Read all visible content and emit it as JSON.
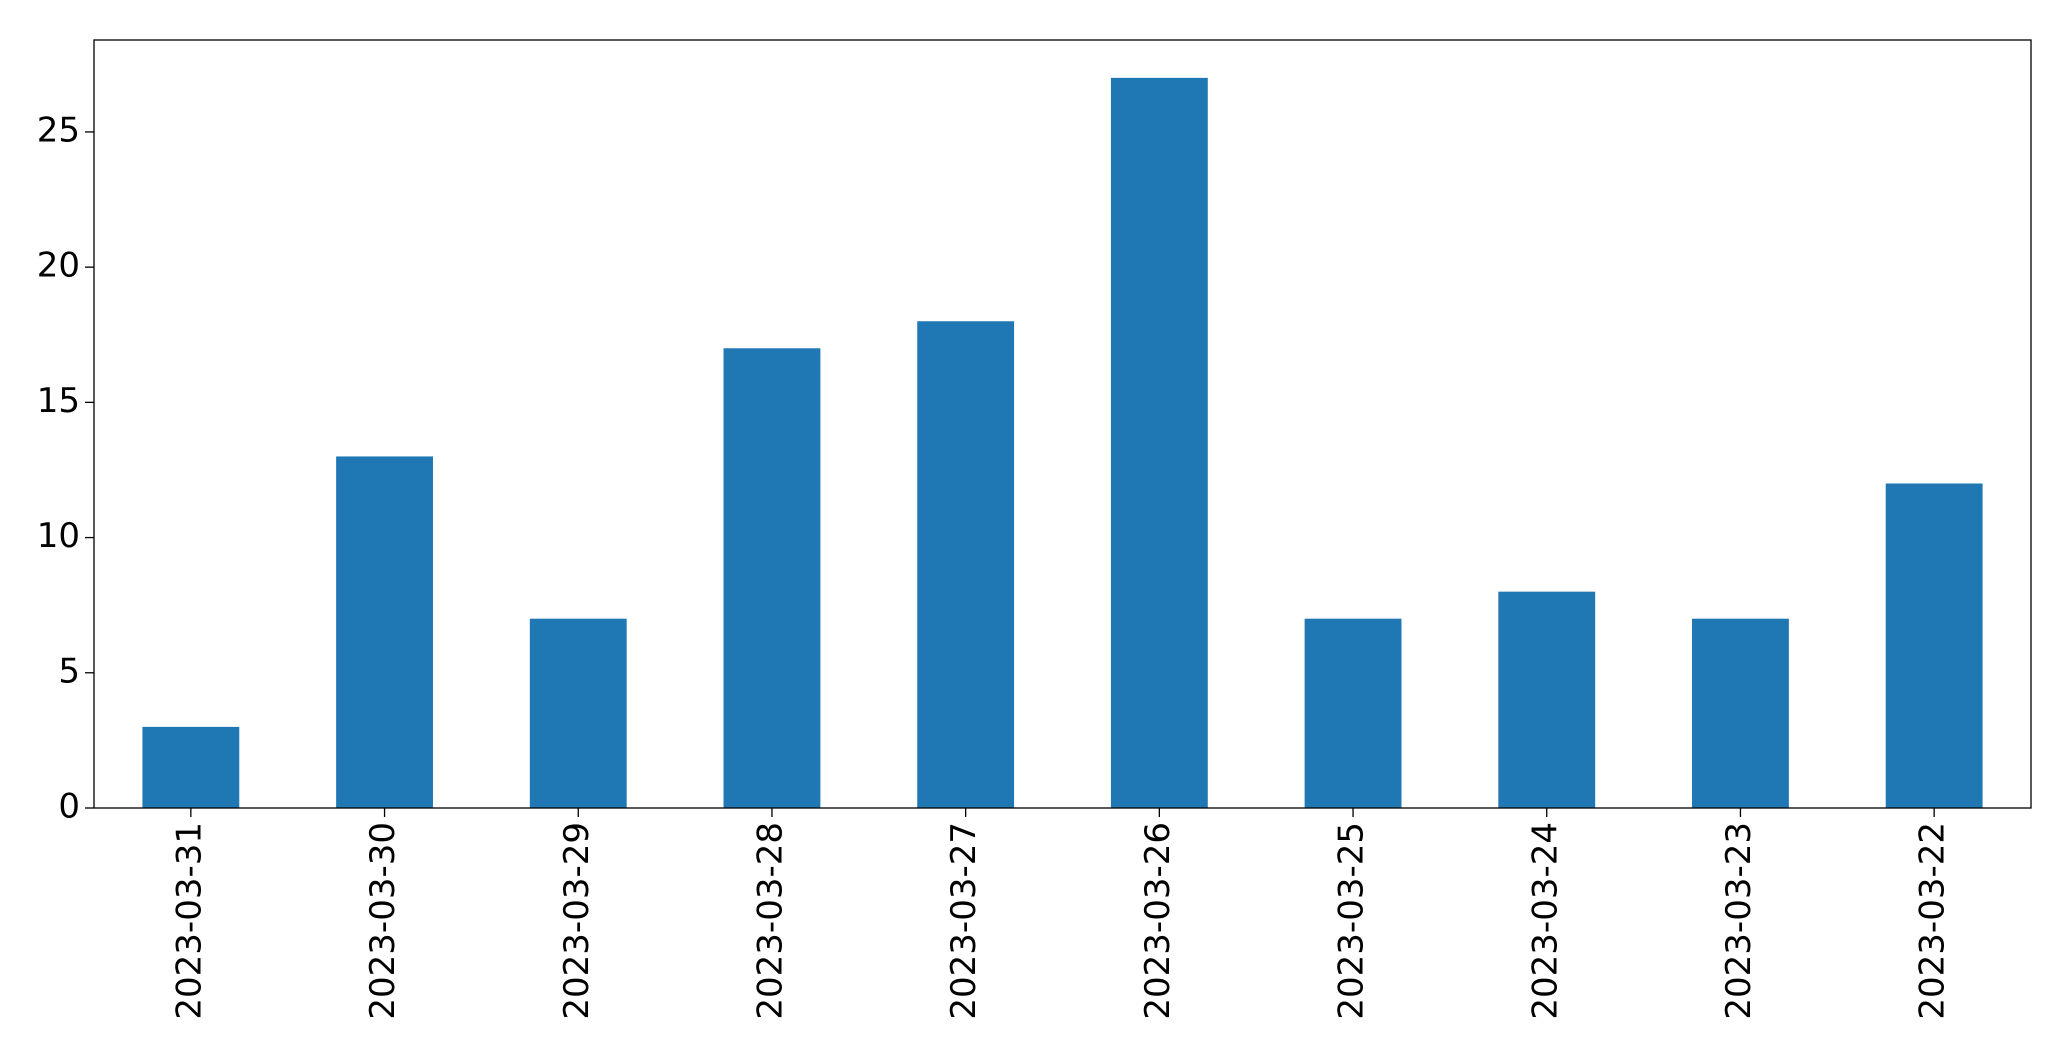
{
  "chart_data": {
    "type": "bar",
    "categories": [
      "2023-03-31",
      "2023-03-30",
      "2023-03-29",
      "2023-03-28",
      "2023-03-27",
      "2023-03-26",
      "2023-03-25",
      "2023-03-24",
      "2023-03-23",
      "2023-03-22"
    ],
    "values": [
      3,
      13,
      7,
      17,
      18,
      27,
      7,
      8,
      7,
      12
    ],
    "color": "#1f77b4",
    "ylim": [
      0,
      28.4
    ],
    "yticks": [
      0,
      5,
      10,
      15,
      20,
      25
    ],
    "grid": false
  }
}
